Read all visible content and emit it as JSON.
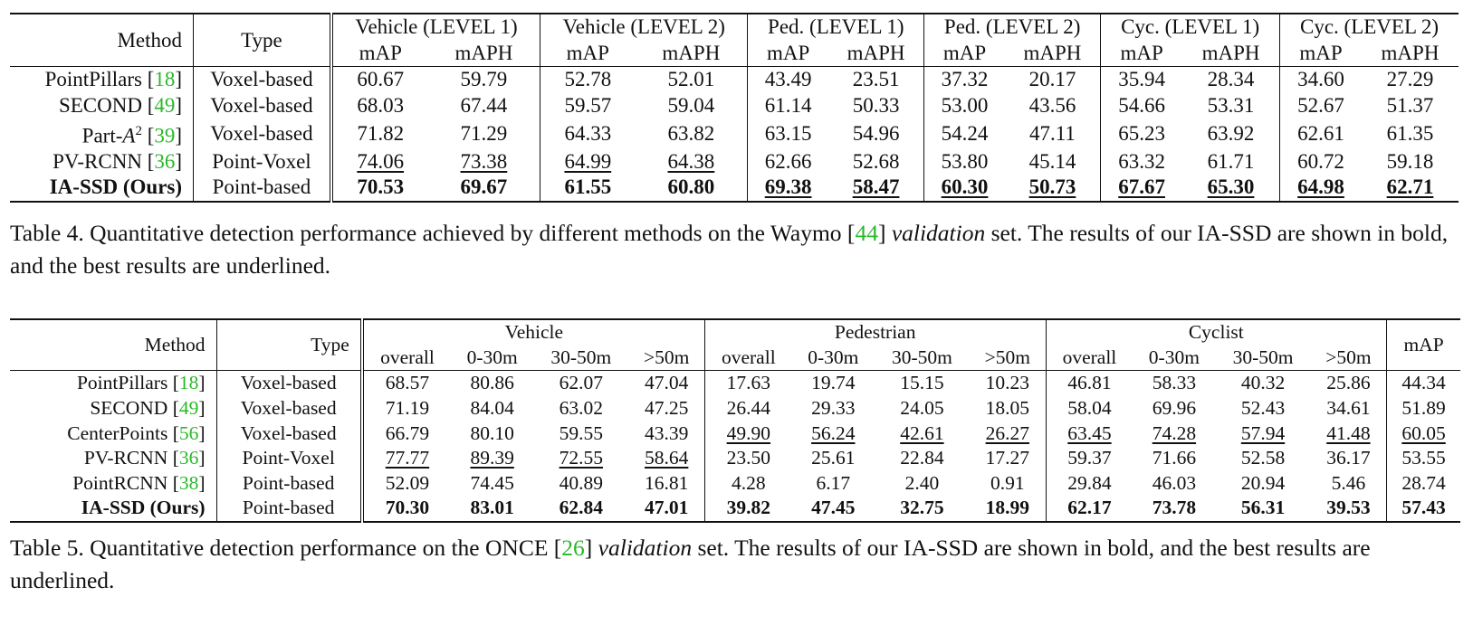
{
  "table4": {
    "header": {
      "method": "Method",
      "type": "Type",
      "groups": [
        "Vehicle (LEVEL 1)",
        "Vehicle (LEVEL 2)",
        "Ped. (LEVEL 1)",
        "Ped. (LEVEL 2)",
        "Cyc. (LEVEL 1)",
        "Cyc. (LEVEL 2)"
      ],
      "sub": [
        "mAP",
        "mAPH"
      ]
    },
    "rows": [
      {
        "name": "PointPillars",
        "cite": "18",
        "type": "Voxel-based",
        "values": [
          "60.67",
          "59.79",
          "52.78",
          "52.01",
          "43.49",
          "23.51",
          "37.32",
          "20.17",
          "35.94",
          "28.34",
          "34.60",
          "27.29"
        ]
      },
      {
        "name": "SECOND",
        "cite": "49",
        "type": "Voxel-based",
        "values": [
          "68.03",
          "67.44",
          "59.57",
          "59.04",
          "61.14",
          "50.33",
          "53.00",
          "43.56",
          "54.66",
          "53.31",
          "52.67",
          "51.37"
        ]
      },
      {
        "name": "Part-",
        "sup": "2",
        "var": "A",
        "cite": "39",
        "type": "Voxel-based",
        "values": [
          "71.82",
          "71.29",
          "64.33",
          "63.82",
          "63.15",
          "54.96",
          "54.24",
          "47.11",
          "65.23",
          "63.92",
          "62.61",
          "61.35"
        ]
      },
      {
        "name": "PV-RCNN",
        "cite": "36",
        "type": "Point-Voxel",
        "values": [
          "74.06",
          "73.38",
          "64.99",
          "64.38",
          "62.66",
          "52.68",
          "53.80",
          "45.14",
          "63.32",
          "61.71",
          "60.72",
          "59.18"
        ]
      },
      {
        "name": "IA-SSD (Ours)",
        "type": "Point-based",
        "values": [
          "70.53",
          "69.67",
          "61.55",
          "60.80",
          "69.38",
          "58.47",
          "60.30",
          "50.73",
          "67.67",
          "65.30",
          "64.98",
          "62.71"
        ]
      }
    ],
    "caption": {
      "prefix": "Table 4. Quantitative detection performance achieved by different methods on the Waymo [",
      "cite": "44",
      "mid": "] ",
      "italic": "validation",
      "suffix": " set. The results of our IA-SSD are shown in bold, and the best results are underlined."
    }
  },
  "table5": {
    "header": {
      "method": "Method",
      "type": "Type",
      "groups": [
        "Vehicle",
        "Pedestrian",
        "Cyclist"
      ],
      "sub": [
        "overall",
        "0-30m",
        "30-50m",
        ">50m"
      ],
      "map": "mAP"
    },
    "rows": [
      {
        "name": "PointPillars",
        "cite": "18",
        "type": "Voxel-based",
        "values": [
          "68.57",
          "80.86",
          "62.07",
          "47.04",
          "17.63",
          "19.74",
          "15.15",
          "10.23",
          "46.81",
          "58.33",
          "40.32",
          "25.86",
          "44.34"
        ]
      },
      {
        "name": "SECOND",
        "cite": "49",
        "type": "Voxel-based",
        "values": [
          "71.19",
          "84.04",
          "63.02",
          "47.25",
          "26.44",
          "29.33",
          "24.05",
          "18.05",
          "58.04",
          "69.96",
          "52.43",
          "34.61",
          "51.89"
        ]
      },
      {
        "name": "CenterPoints",
        "cite": "56",
        "type": "Voxel-based",
        "values": [
          "66.79",
          "80.10",
          "59.55",
          "43.39",
          "49.90",
          "56.24",
          "42.61",
          "26.27",
          "63.45",
          "74.28",
          "57.94",
          "41.48",
          "60.05"
        ]
      },
      {
        "name": "PV-RCNN",
        "cite": "36",
        "type": "Point-Voxel",
        "values": [
          "77.77",
          "89.39",
          "72.55",
          "58.64",
          "23.50",
          "25.61",
          "22.84",
          "17.27",
          "59.37",
          "71.66",
          "52.58",
          "36.17",
          "53.55"
        ]
      },
      {
        "name": "PointRCNN",
        "cite": "38",
        "type": "Point-based",
        "values": [
          "52.09",
          "74.45",
          "40.89",
          "16.81",
          "4.28",
          "6.17",
          "2.40",
          "0.91",
          "29.84",
          "46.03",
          "20.94",
          "5.46",
          "28.74"
        ]
      },
      {
        "name": "IA-SSD (Ours)",
        "type": "Point-based",
        "values": [
          "70.30",
          "83.01",
          "62.84",
          "47.01",
          "39.82",
          "47.45",
          "32.75",
          "18.99",
          "62.17",
          "73.78",
          "56.31",
          "39.53",
          "57.43"
        ]
      }
    ],
    "caption": {
      "prefix": "Table 5. Quantitative detection performance on the ONCE [",
      "cite": "26",
      "mid": "] ",
      "italic": "validation",
      "suffix": " set. The results of our IA-SSD are shown in bold, and the best results are underlined."
    }
  }
}
